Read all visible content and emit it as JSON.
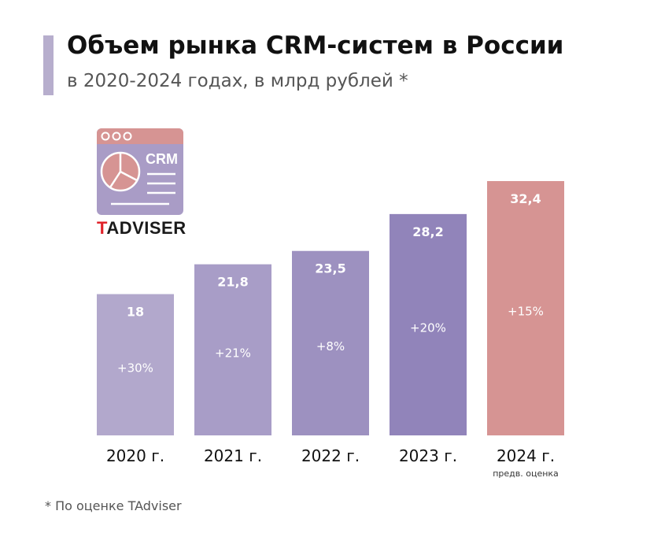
{
  "title": "Объем рынка CRM-систем в России",
  "subtitle": "в 2020-2024 годах, в млрд рублей *",
  "logo": {
    "badge": "CRM",
    "brand_letter": "T",
    "brand_rest": "ADVISER"
  },
  "footnote": "* По оценке TAdviser",
  "colors": {
    "accent": "#b7aecd",
    "bar_2024": "#d69493",
    "logo_top": "#d69493",
    "logo_body": "#a99cc6"
  },
  "chart_data": {
    "type": "bar",
    "title": "Объем рынка CRM-систем в России",
    "ylabel": "млрд рублей",
    "ylim": [
      0,
      32.4
    ],
    "categories": [
      "2020 г.",
      "2021 г.",
      "2022 г.",
      "2023 г.",
      "2024 г."
    ],
    "values": [
      18,
      21.8,
      23.5,
      28.2,
      32.4
    ],
    "value_labels": [
      "18",
      "21,8",
      "23,5",
      "28,2",
      "32,4"
    ],
    "growth_labels": [
      "+30%",
      "+21%",
      "+8%",
      "+20%",
      "+15%"
    ],
    "colors": [
      "#b2a8cc",
      "#a89dc7",
      "#9d91c0",
      "#9184ba",
      "#d69493"
    ],
    "notes": [
      "",
      "",
      "",
      "",
      "предв. оценка"
    ]
  }
}
